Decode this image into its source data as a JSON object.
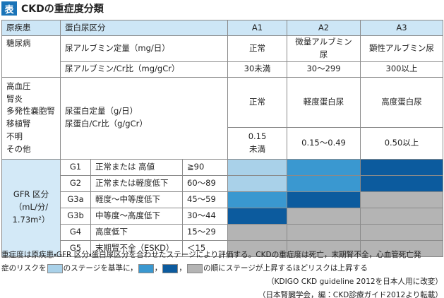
{
  "title": {
    "badge": "表",
    "text": "CKDの重症度分類"
  },
  "table": {
    "header": [
      "原疾患",
      "蛋白尿区分",
      "A1",
      "A2",
      "A3"
    ],
    "diabetes": {
      "disease": "糖尿病",
      "measures": [
        "尿アルブミン定量（mg/日）",
        "尿アルブミン/Cr比（mg/gCr）"
      ],
      "categories": [
        "正常",
        "微量アルブミン尿",
        "顕性アルブミン尿"
      ],
      "ranges": [
        "30未満",
        "30〜299",
        "300以上"
      ]
    },
    "other": {
      "diseases": [
        "高血圧",
        "腎炎",
        "多発性嚢胞腎",
        "移植腎",
        "不明",
        "その他"
      ],
      "measures": [
        "尿蛋白定量（g/日）",
        "尿蛋白/Cr比（g/gCr）"
      ],
      "categories": [
        "正常",
        "軽度蛋白尿",
        "高度蛋白尿"
      ],
      "ranges": [
        "0.15\n未満",
        "0.15〜0.49",
        "0.50以上"
      ]
    },
    "gfr": {
      "label": "GFR 区分\n（mL/分/\n1.73m²）",
      "stages": [
        {
          "stage": "G1",
          "description": "正常または 高値",
          "range": "≧90",
          "risk_colors": [
            "#a9d1e9",
            "#3a98d0",
            "#0c5b9e"
          ]
        },
        {
          "stage": "G2",
          "description": "正常または軽度低下",
          "range": "60〜89",
          "risk_colors": [
            "#a9d1e9",
            "#3a98d0",
            "#0c5b9e"
          ]
        },
        {
          "stage": "G3a",
          "description": "軽度〜中等度低下",
          "range": "45〜59",
          "risk_colors": [
            "#3a98d0",
            "#0c5b9e",
            "#b4b4b4"
          ]
        },
        {
          "stage": "G3b",
          "description": "中等度〜高度低下",
          "range": "30〜44",
          "risk_colors": [
            "#0c5b9e",
            "#b4b4b4",
            "#b4b4b4"
          ]
        },
        {
          "stage": "G4",
          "description": "高度低下",
          "range": "15〜29",
          "risk_colors": [
            "#b4b4b4",
            "#b4b4b4",
            "#b4b4b4"
          ]
        },
        {
          "stage": "G5",
          "description": "末期腎不全（ESKD）",
          "range": "＜15",
          "risk_colors": [
            "#b4b4b4",
            "#b4b4b4",
            "#b4b4b4"
          ]
        }
      ]
    }
  },
  "legend_colors": [
    "#a9d1e9",
    "#3a98d0",
    "#0c5b9e",
    "#b4b4b4"
  ],
  "footnotes": [
    "重症度は原疾患・GFR 区分・蛋白尿区分を合わせたステージにより評価する。CKDの重症度は死亡，末期腎不全，心血管死亡発",
    [
      "症のリスクを",
      "のステージを基準に，",
      "，",
      "，",
      "の順にステージが上昇するほどリスクは上昇する"
    ],
    "（KDIGO CKD guideline 2012を日本人用に改変）",
    "（日本腎臓学会，編：CKD診療ガイド2012より転載）"
  ]
}
